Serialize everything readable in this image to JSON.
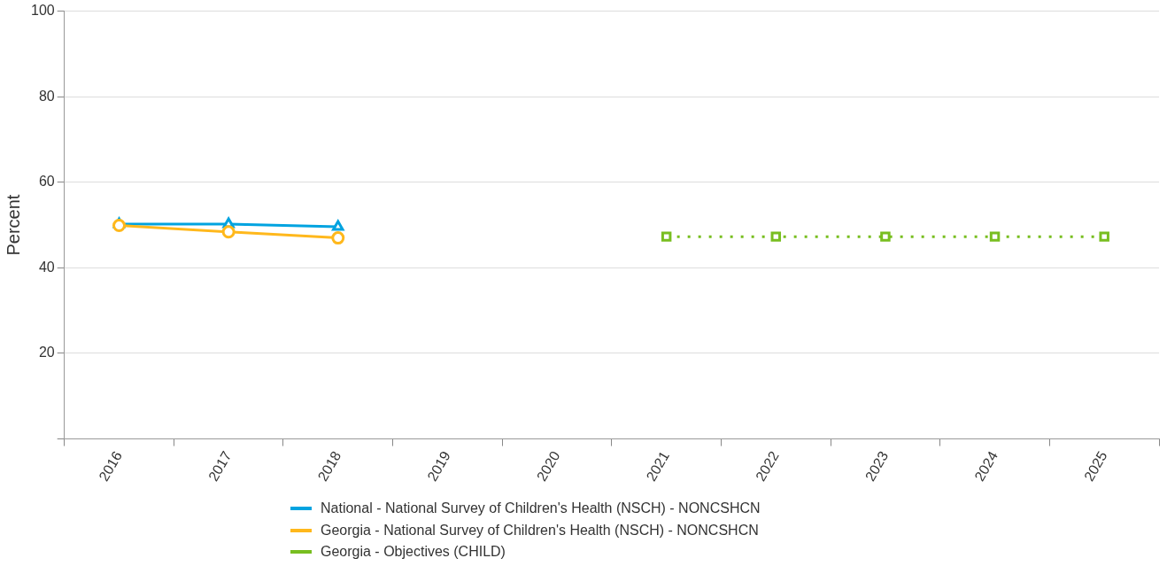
{
  "chart_data": {
    "type": "line",
    "ylabel": "Percent",
    "categories": [
      "2016",
      "2017",
      "2018",
      "2019",
      "2020",
      "2021",
      "2022",
      "2023",
      "2024",
      "2025"
    ],
    "ylim": [
      0,
      100
    ],
    "yticks": [
      20,
      40,
      60,
      80,
      100
    ],
    "grid": "y",
    "legend": "bottom",
    "series": [
      {
        "name": "National - National Survey of Children's Health (NSCH) - NONCSHCN",
        "color": "#00a3e0",
        "marker": "triangle",
        "line_style": "solid",
        "values": [
          50.2,
          50.2,
          49.6,
          null,
          null,
          null,
          null,
          null,
          null,
          null
        ]
      },
      {
        "name": "Georgia - National Survey of Children's Health (NSCH) - NONCSHCN",
        "color": "#ffb81c",
        "marker": "circle",
        "line_style": "solid",
        "values": [
          49.9,
          48.4,
          47.0,
          null,
          null,
          null,
          null,
          null,
          null,
          null
        ]
      },
      {
        "name": "Georgia - Objectives (CHILD)",
        "color": "#78be20",
        "marker": "square",
        "line_style": "dotted",
        "values": [
          null,
          null,
          null,
          null,
          null,
          47.3,
          47.3,
          47.3,
          47.3,
          47.3
        ]
      }
    ]
  }
}
